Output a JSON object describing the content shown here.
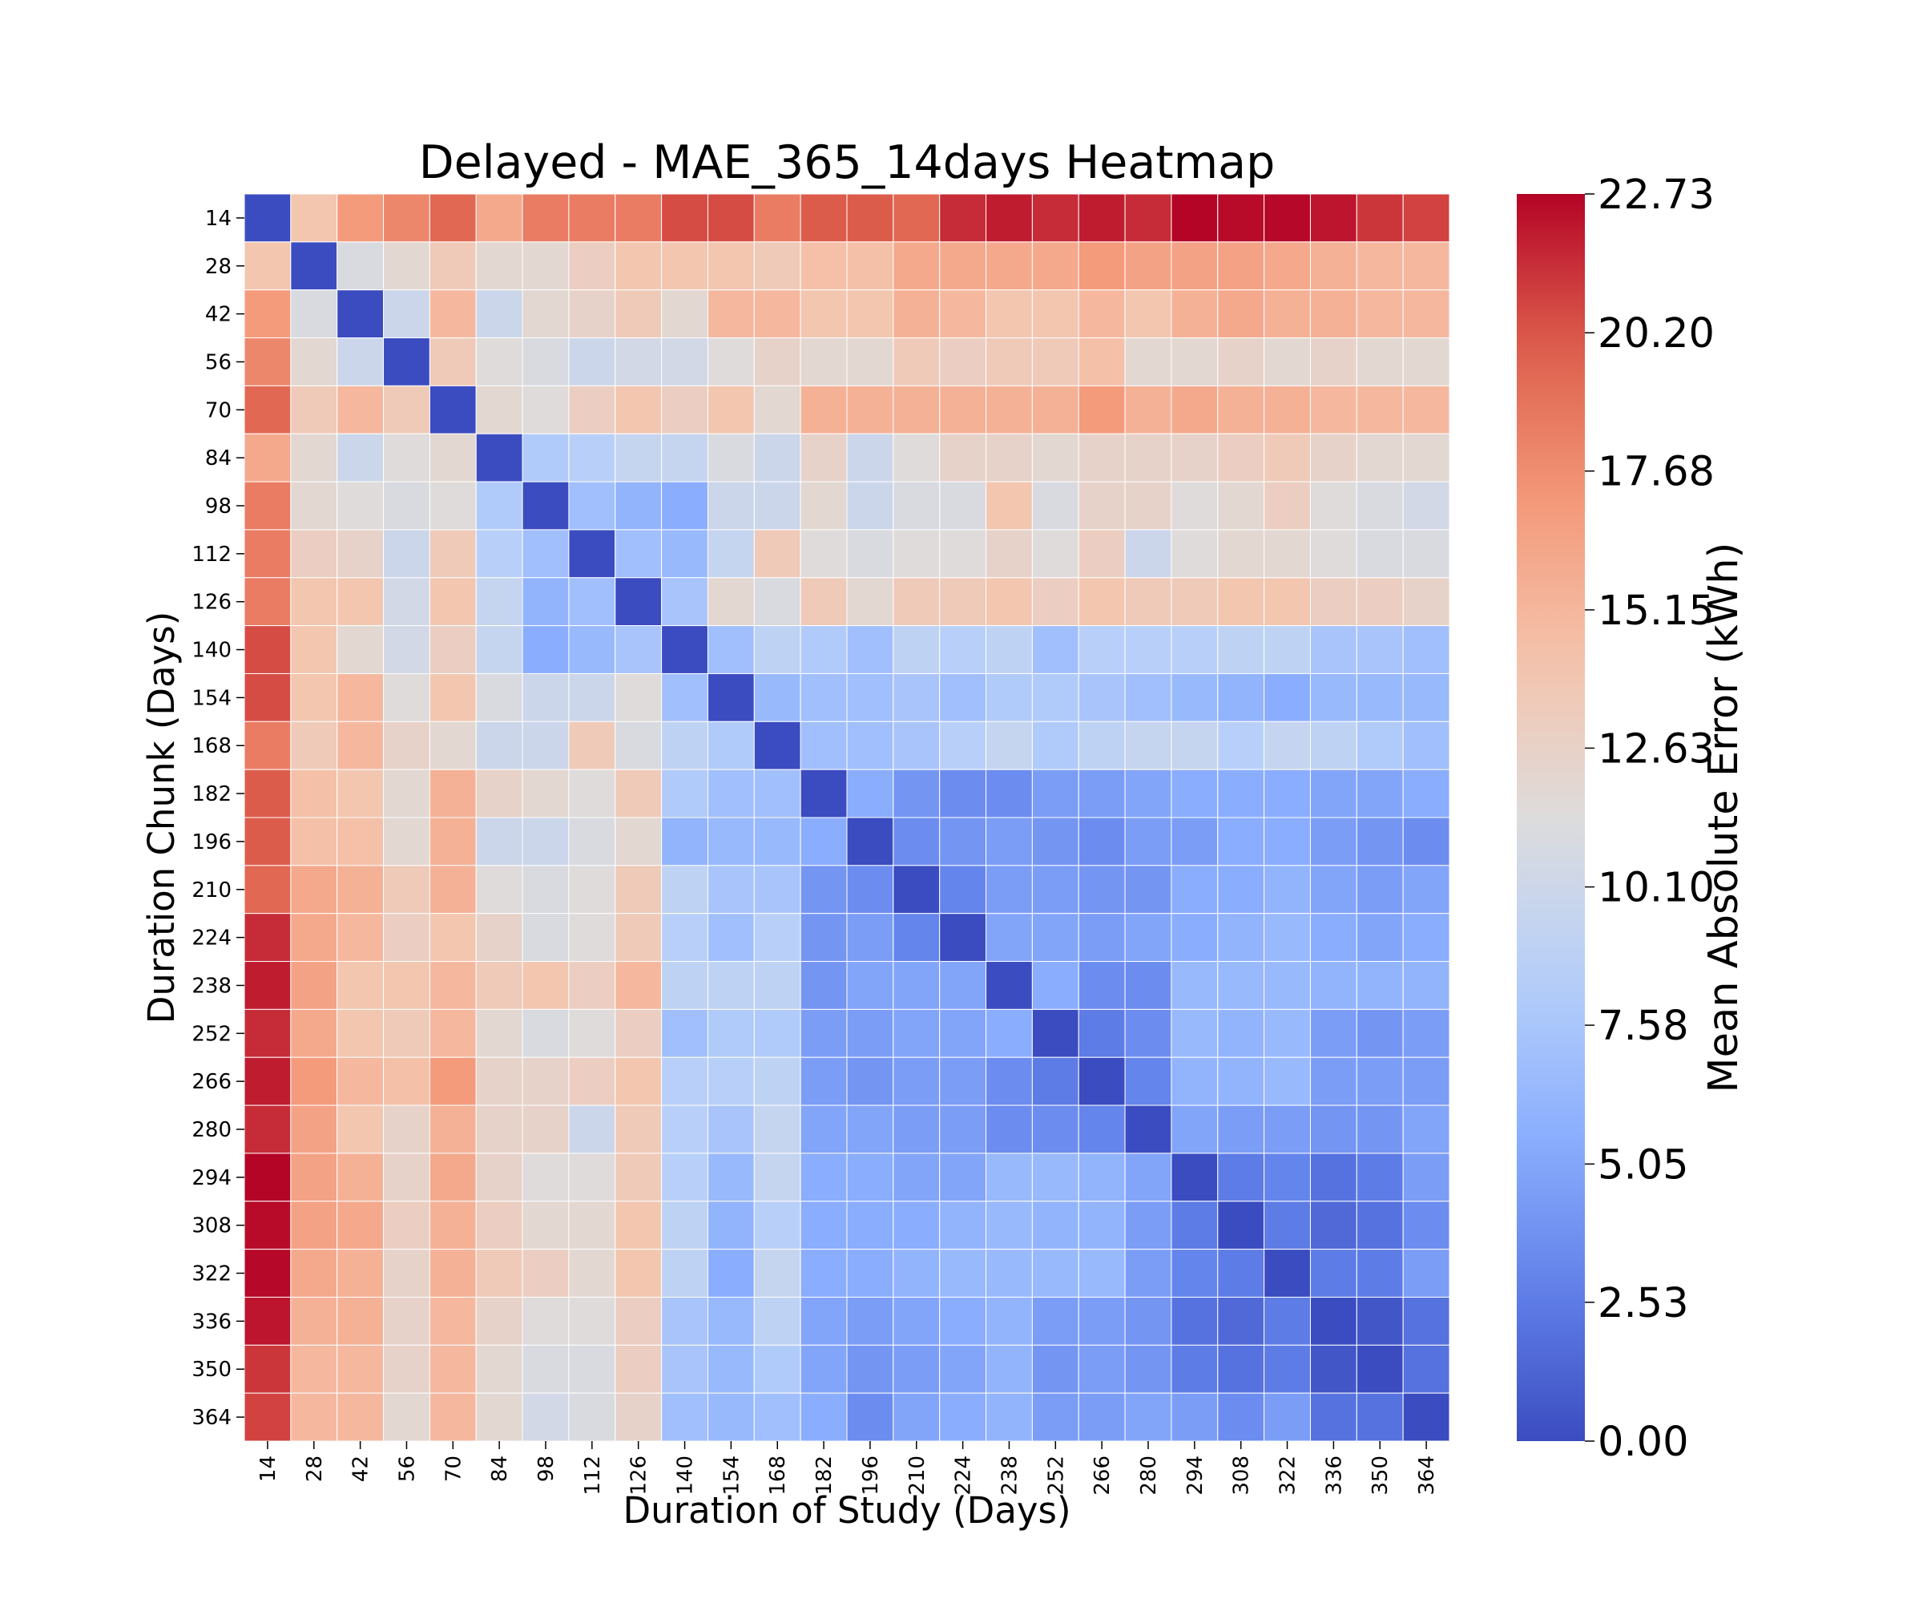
{
  "chart_data": {
    "type": "heatmap",
    "title": "Delayed - MAE_365_14days Heatmap",
    "xlabel": "Duration of Study (Days)",
    "ylabel": "Duration Chunk (Days)",
    "x_categories": [
      "14",
      "28",
      "42",
      "56",
      "70",
      "84",
      "98",
      "112",
      "126",
      "140",
      "154",
      "168",
      "182",
      "196",
      "210",
      "224",
      "238",
      "252",
      "266",
      "280",
      "294",
      "308",
      "322",
      "336",
      "350",
      "364"
    ],
    "y_categories": [
      "14",
      "28",
      "42",
      "56",
      "70",
      "84",
      "98",
      "112",
      "126",
      "140",
      "154",
      "168",
      "182",
      "196",
      "210",
      "224",
      "238",
      "252",
      "266",
      "280",
      "294",
      "308",
      "322",
      "336",
      "350",
      "364"
    ],
    "colorbar": {
      "label": "Mean Absolute Error (kWh)",
      "range": [
        0,
        22.73
      ],
      "ticks": [
        "0.00",
        "2.53",
        "5.05",
        "7.58",
        "10.10",
        "12.63",
        "15.15",
        "17.68",
        "20.20",
        "22.73"
      ],
      "colormap": "coolwarm"
    },
    "values": [
      [
        0.0,
        14.0,
        17.0,
        18.0,
        19.5,
        16.0,
        18.5,
        18.5,
        18.5,
        20.5,
        20.5,
        18.5,
        20.0,
        20.0,
        19.5,
        21.5,
        22.0,
        21.5,
        22.0,
        21.5,
        22.7,
        22.5,
        22.6,
        22.2,
        21.2,
        20.8
      ],
      [
        14.0,
        0.0,
        11.0,
        12.0,
        13.5,
        12.0,
        12.0,
        13.0,
        14.0,
        14.0,
        14.0,
        13.5,
        14.5,
        14.5,
        16.0,
        16.0,
        16.0,
        16.0,
        17.0,
        16.5,
        16.5,
        16.5,
        16.0,
        15.5,
        15.0,
        15.0
      ],
      [
        17.0,
        11.0,
        0.0,
        10.0,
        15.0,
        10.0,
        12.0,
        12.5,
        13.5,
        12.0,
        15.0,
        15.0,
        14.0,
        14.0,
        15.5,
        15.0,
        14.0,
        14.0,
        15.0,
        14.0,
        15.5,
        16.0,
        15.5,
        15.5,
        15.0,
        15.0
      ],
      [
        18.0,
        12.0,
        10.0,
        0.0,
        13.5,
        11.5,
        11.0,
        10.0,
        10.5,
        10.5,
        11.5,
        12.5,
        12.0,
        12.0,
        13.5,
        13.0,
        13.5,
        13.5,
        14.5,
        12.0,
        12.0,
        12.5,
        12.0,
        12.5,
        12.0,
        12.0
      ],
      [
        19.5,
        13.5,
        15.0,
        13.5,
        0.0,
        12.0,
        11.5,
        13.0,
        14.0,
        13.0,
        14.0,
        12.0,
        15.5,
        15.5,
        15.5,
        15.5,
        15.5,
        15.5,
        17.0,
        15.5,
        16.0,
        15.5,
        15.5,
        15.0,
        15.0,
        15.0
      ],
      [
        16.0,
        12.0,
        10.0,
        11.5,
        12.0,
        0.0,
        8.0,
        8.5,
        9.5,
        9.5,
        11.0,
        10.0,
        12.5,
        10.0,
        11.5,
        12.5,
        12.5,
        12.0,
        12.5,
        12.5,
        12.5,
        13.0,
        13.5,
        12.5,
        12.0,
        12.0
      ],
      [
        18.5,
        12.0,
        11.5,
        11.0,
        11.5,
        8.0,
        0.0,
        7.0,
        6.0,
        5.5,
        10.0,
        10.0,
        12.0,
        10.0,
        11.0,
        11.0,
        14.0,
        11.0,
        12.5,
        12.5,
        11.5,
        12.0,
        13.0,
        11.5,
        11.0,
        10.5
      ],
      [
        18.5,
        13.0,
        12.5,
        10.0,
        13.5,
        8.5,
        7.0,
        0.0,
        7.0,
        6.5,
        9.5,
        13.5,
        11.5,
        11.0,
        11.5,
        11.5,
        12.5,
        11.5,
        13.0,
        10.0,
        11.5,
        12.0,
        12.0,
        11.5,
        11.0,
        11.0
      ],
      [
        18.5,
        14.0,
        14.0,
        10.5,
        14.0,
        9.5,
        6.0,
        7.0,
        0.0,
        7.5,
        12.0,
        11.0,
        13.5,
        12.0,
        13.5,
        13.5,
        14.0,
        13.0,
        14.0,
        13.5,
        13.5,
        14.0,
        14.0,
        13.0,
        13.0,
        12.5
      ],
      [
        20.5,
        14.0,
        12.0,
        10.5,
        13.0,
        9.5,
        5.5,
        6.5,
        7.5,
        0.0,
        7.0,
        9.0,
        8.0,
        7.0,
        9.0,
        8.5,
        9.0,
        7.0,
        8.5,
        8.5,
        8.5,
        9.0,
        9.0,
        7.5,
        7.5,
        7.0
      ],
      [
        20.5,
        14.0,
        15.0,
        11.5,
        14.0,
        11.0,
        10.0,
        10.0,
        11.5,
        7.0,
        0.0,
        6.5,
        7.0,
        7.0,
        7.5,
        7.0,
        8.0,
        8.0,
        7.5,
        7.0,
        6.5,
        6.0,
        5.5,
        6.5,
        6.5,
        6.5
      ],
      [
        18.5,
        13.5,
        15.0,
        12.5,
        12.0,
        10.0,
        10.0,
        13.5,
        11.0,
        9.0,
        8.0,
        0.0,
        7.0,
        7.0,
        7.5,
        8.5,
        9.5,
        8.0,
        9.0,
        9.5,
        9.5,
        8.5,
        9.5,
        9.0,
        8.0,
        7.0
      ],
      [
        20.0,
        14.5,
        14.0,
        12.0,
        15.5,
        12.5,
        12.0,
        11.5,
        13.5,
        8.0,
        7.0,
        7.0,
        0.0,
        5.5,
        4.0,
        3.5,
        3.5,
        4.5,
        4.5,
        5.0,
        5.5,
        5.5,
        5.5,
        5.0,
        5.0,
        5.5
      ],
      [
        20.0,
        14.5,
        14.5,
        12.0,
        15.5,
        10.0,
        10.0,
        11.0,
        12.0,
        6.0,
        6.5,
        6.5,
        5.5,
        0.0,
        3.5,
        4.0,
        4.5,
        4.0,
        3.5,
        4.5,
        4.5,
        5.5,
        5.5,
        4.5,
        4.0,
        3.5
      ],
      [
        19.5,
        16.0,
        15.5,
        13.5,
        15.5,
        11.5,
        11.0,
        11.5,
        13.5,
        9.0,
        7.5,
        7.5,
        4.0,
        3.5,
        0.0,
        3.0,
        4.5,
        4.5,
        4.0,
        4.0,
        5.5,
        5.5,
        6.0,
        5.0,
        4.5,
        5.0
      ],
      [
        21.5,
        16.0,
        15.0,
        13.0,
        14.0,
        12.5,
        11.0,
        11.5,
        13.5,
        8.5,
        7.0,
        8.5,
        4.0,
        4.5,
        3.0,
        0.0,
        5.0,
        5.0,
        4.5,
        5.0,
        5.5,
        6.0,
        6.5,
        5.5,
        5.0,
        5.5
      ],
      [
        22.0,
        16.5,
        14.0,
        14.0,
        15.0,
        13.5,
        14.0,
        13.0,
        15.0,
        9.0,
        9.0,
        9.0,
        4.0,
        5.0,
        5.0,
        5.0,
        0.0,
        5.5,
        3.5,
        3.5,
        6.5,
        6.5,
        6.5,
        6.0,
        6.0,
        6.0
      ],
      [
        21.5,
        16.0,
        14.0,
        13.5,
        15.0,
        12.0,
        11.0,
        11.5,
        13.0,
        7.0,
        8.0,
        8.0,
        4.5,
        4.5,
        5.0,
        5.0,
        5.5,
        0.0,
        2.5,
        3.5,
        6.5,
        6.0,
        6.5,
        4.5,
        4.0,
        4.5
      ],
      [
        22.0,
        17.0,
        15.0,
        14.5,
        17.0,
        12.5,
        12.5,
        13.0,
        14.0,
        8.5,
        8.5,
        9.0,
        4.5,
        4.0,
        4.5,
        4.5,
        3.5,
        2.5,
        0.0,
        3.0,
        6.0,
        6.0,
        6.5,
        4.5,
        4.5,
        4.5
      ],
      [
        21.5,
        16.5,
        14.0,
        12.5,
        15.5,
        12.5,
        12.5,
        10.0,
        13.5,
        8.5,
        7.5,
        9.5,
        5.0,
        5.0,
        4.5,
        4.5,
        3.5,
        3.5,
        3.0,
        0.0,
        5.0,
        4.5,
        4.5,
        4.0,
        4.0,
        5.0
      ],
      [
        22.7,
        16.5,
        15.5,
        12.5,
        16.0,
        12.5,
        11.5,
        11.5,
        13.5,
        8.5,
        6.5,
        9.5,
        5.5,
        5.5,
        5.0,
        5.0,
        6.5,
        6.5,
        6.0,
        5.0,
        0.0,
        2.5,
        3.0,
        2.0,
        2.5,
        4.5
      ],
      [
        22.5,
        16.5,
        16.0,
        13.0,
        15.5,
        13.0,
        12.0,
        12.0,
        14.0,
        9.0,
        6.0,
        8.5,
        5.5,
        5.5,
        5.5,
        6.0,
        6.5,
        6.0,
        6.0,
        4.5,
        2.5,
        0.0,
        2.5,
        1.5,
        2.0,
        3.5
      ],
      [
        22.6,
        16.0,
        15.5,
        12.5,
        15.5,
        13.5,
        13.0,
        12.0,
        14.0,
        9.0,
        5.5,
        9.5,
        5.5,
        5.5,
        6.0,
        6.5,
        6.5,
        6.5,
        6.5,
        4.5,
        3.0,
        2.5,
        0.0,
        2.5,
        2.5,
        4.5
      ],
      [
        22.2,
        15.5,
        15.5,
        12.5,
        15.0,
        12.5,
        11.5,
        11.5,
        13.0,
        7.5,
        6.5,
        9.0,
        5.0,
        4.5,
        5.0,
        5.5,
        6.0,
        4.5,
        4.5,
        4.0,
        2.0,
        1.5,
        2.5,
        0.0,
        0.5,
        2.0
      ],
      [
        21.2,
        15.0,
        15.0,
        12.5,
        15.0,
        12.0,
        11.0,
        11.0,
        13.0,
        7.5,
        6.5,
        8.0,
        5.0,
        4.0,
        4.5,
        5.0,
        6.0,
        4.0,
        4.5,
        4.0,
        2.5,
        2.0,
        2.5,
        0.5,
        0.0,
        2.0
      ],
      [
        20.8,
        15.0,
        15.0,
        12.0,
        15.0,
        12.0,
        10.5,
        11.0,
        12.5,
        7.0,
        6.5,
        7.0,
        5.5,
        3.5,
        5.0,
        5.5,
        6.0,
        4.5,
        4.5,
        5.0,
        4.5,
        3.5,
        4.5,
        2.0,
        2.0,
        0.0
      ]
    ]
  }
}
